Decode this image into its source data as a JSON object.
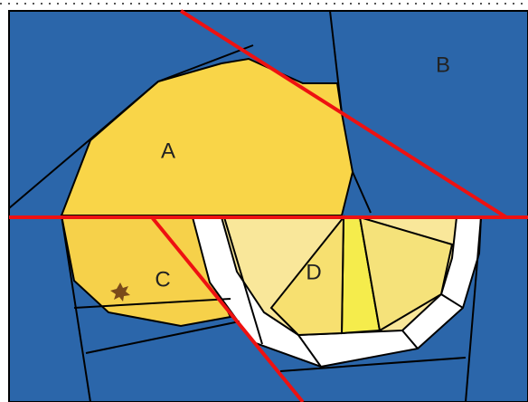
{
  "pieces": [
    {
      "label": "A"
    },
    {
      "label": "B"
    },
    {
      "label": "C"
    },
    {
      "label": "D"
    }
  ]
}
